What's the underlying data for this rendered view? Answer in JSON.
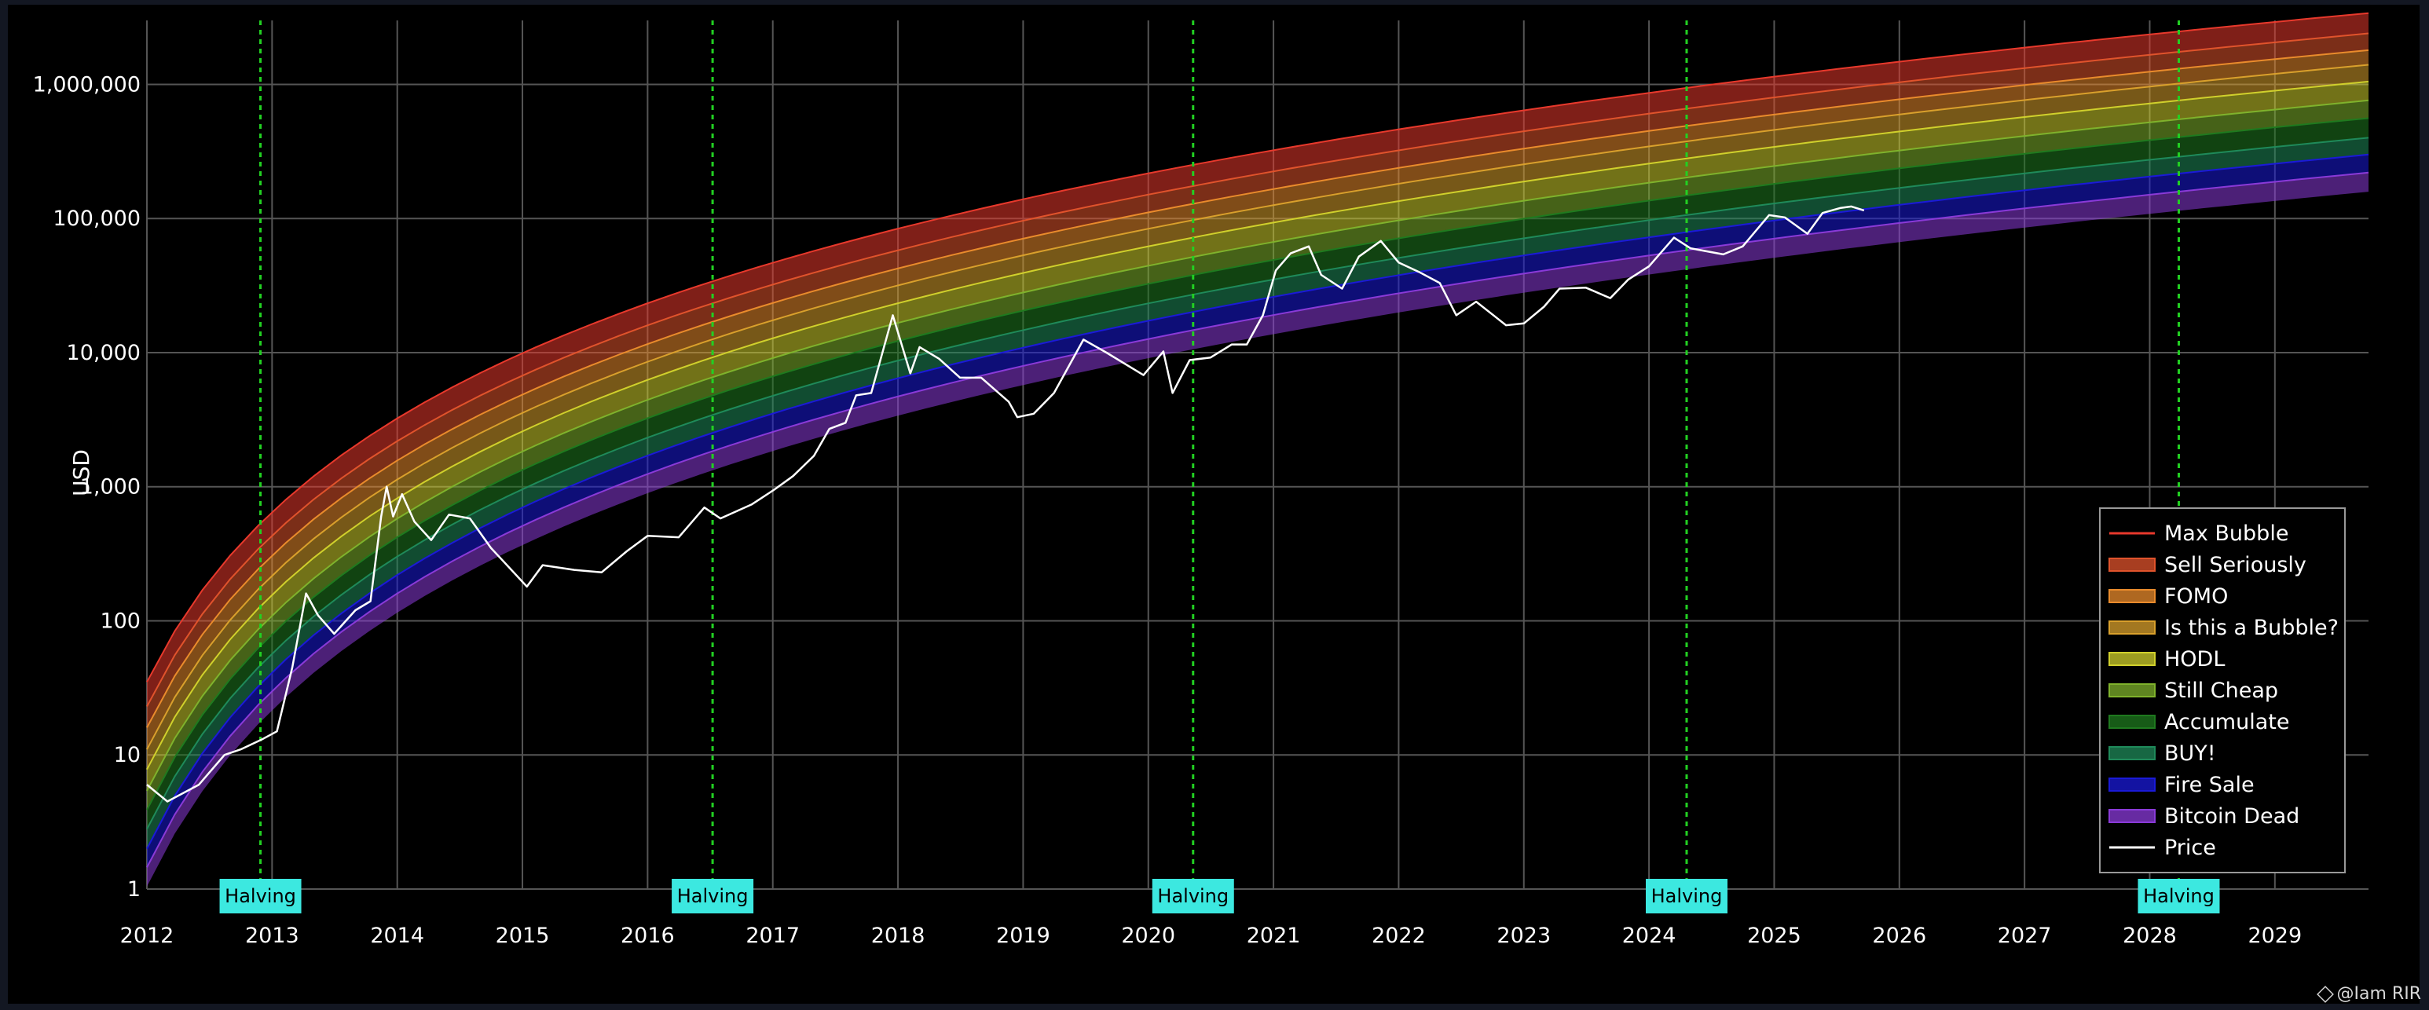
{
  "chart_data": {
    "type": "area",
    "title": "",
    "xlabel": "",
    "ylabel": "USD",
    "yscale": "log",
    "xlim": [
      "2012-01-01",
      "2029-10-01"
    ],
    "ylim": [
      1,
      3000000
    ],
    "x_ticks": [
      "2012",
      "2013",
      "2014",
      "2015",
      "2016",
      "2017",
      "2018",
      "2019",
      "2020",
      "2021",
      "2022",
      "2023",
      "2024",
      "2025",
      "2026",
      "2027",
      "2028",
      "2029"
    ],
    "y_ticks": [
      1,
      10,
      100,
      1000,
      10000,
      100000,
      1000000
    ],
    "y_tick_labels": [
      "1",
      "10",
      "100",
      "1,000",
      "10,000",
      "100,000",
      "1,000,000"
    ],
    "grid": true,
    "legend_position": "bottom-right",
    "rainbow_bands": [
      {
        "name": "Max Bubble",
        "color": "#e8392c",
        "values_2012": 35,
        "values_2029_75": 3400000
      },
      {
        "name": "Sell Seriously",
        "color": "#e0532c",
        "values_2012": 23,
        "values_2029_75": 2400000
      },
      {
        "name": "FOMO",
        "color": "#e98b2c",
        "values_2012": 16,
        "values_2029_75": 1800000
      },
      {
        "name": "Is this a Bubble?",
        "color": "#d9a02c",
        "values_2012": 11,
        "values_2029_75": 1400000
      },
      {
        "name": "HODL",
        "color": "#d0d02c",
        "values_2012": 7.8,
        "values_2029_75": 1050000
      },
      {
        "name": "Still Cheap",
        "color": "#7fb22c",
        "values_2012": 5.4,
        "values_2029_75": 760000
      },
      {
        "name": "Accumulate",
        "color": "#1f7a1f",
        "values_2012": 3.9,
        "values_2029_75": 560000
      },
      {
        "name": "BUY!",
        "color": "#1f8a5a",
        "values_2012": 2.8,
        "values_2029_75": 400000
      },
      {
        "name": "Fire Sale",
        "color": "#1a1ad8",
        "values_2012": 2.0,
        "values_2029_75": 300000
      },
      {
        "name": "Bitcoin Dead",
        "color": "#8a3ad8",
        "values_2012": 1.45,
        "values_2029_75": 220000
      }
    ],
    "series": [
      {
        "name": "Price",
        "color": "#ffffff",
        "x": [
          "2012-01-01",
          "2012-03-01",
          "2012-06-01",
          "2012-08-15",
          "2012-10-01",
          "2012-12-01",
          "2013-01-15",
          "2013-03-01",
          "2013-04-10",
          "2013-05-15",
          "2013-07-01",
          "2013-09-01",
          "2013-10-15",
          "2013-11-15",
          "2013-12-01",
          "2013-12-20",
          "2014-01-15",
          "2014-02-20",
          "2014-04-10",
          "2014-06-01",
          "2014-08-01",
          "2014-10-01",
          "2015-01-14",
          "2015-03-01",
          "2015-06-01",
          "2015-08-20",
          "2015-11-01",
          "2016-01-01",
          "2016-04-01",
          "2016-06-15",
          "2016-08-01",
          "2016-11-01",
          "2017-01-05",
          "2017-03-01",
          "2017-05-01",
          "2017-06-15",
          "2017-08-01",
          "2017-09-01",
          "2017-10-15",
          "2017-12-17",
          "2018-02-06",
          "2018-03-05",
          "2018-05-01",
          "2018-07-01",
          "2018-09-01",
          "2018-11-20",
          "2018-12-15",
          "2019-02-01",
          "2019-04-01",
          "2019-06-26",
          "2019-09-01",
          "2019-12-18",
          "2020-02-14",
          "2020-03-12",
          "2020-05-01",
          "2020-07-01",
          "2020-09-01",
          "2020-10-15",
          "2020-12-01",
          "2021-01-08",
          "2021-02-20",
          "2021-04-14",
          "2021-05-20",
          "2021-07-20",
          "2021-09-07",
          "2021-11-10",
          "2022-01-01",
          "2022-03-01",
          "2022-05-01",
          "2022-06-18",
          "2022-08-15",
          "2022-11-10",
          "2023-01-01",
          "2023-03-01",
          "2023-04-15",
          "2023-07-01",
          "2023-09-10",
          "2023-11-01",
          "2024-01-01",
          "2024-03-14",
          "2024-05-01",
          "2024-08-05",
          "2024-10-01",
          "2024-12-17",
          "2025-02-01",
          "2025-04-08",
          "2025-05-22",
          "2025-07-14",
          "2025-08-14",
          "2025-09-20"
        ],
        "values": [
          6,
          4.5,
          6,
          10,
          11,
          13,
          15,
          45,
          160,
          110,
          80,
          120,
          140,
          600,
          1000,
          600,
          880,
          550,
          400,
          620,
          580,
          350,
          180,
          260,
          240,
          230,
          330,
          430,
          420,
          700,
          580,
          740,
          950,
          1200,
          1700,
          2700,
          3000,
          4800,
          5000,
          19000,
          7000,
          11000,
          9000,
          6500,
          6500,
          4300,
          3300,
          3500,
          5000,
          12500,
          10000,
          6800,
          10200,
          5000,
          8800,
          9200,
          11500,
          11500,
          19000,
          41000,
          55000,
          62000,
          38000,
          30000,
          52000,
          68000,
          47000,
          40000,
          33000,
          19000,
          24000,
          16000,
          16500,
          22000,
          30000,
          30500,
          25500,
          35000,
          44000,
          72000,
          60000,
          54000,
          62000,
          106000,
          102000,
          77000,
          110000,
          120000,
          123000,
          115000
        ]
      }
    ],
    "legend": [
      "Max Bubble",
      "Sell Seriously",
      "FOMO",
      "Is this a Bubble?",
      "HODL",
      "Still Cheap",
      "Accumulate",
      "BUY!",
      "Fire Sale",
      "Bitcoin Dead",
      "Price"
    ],
    "halvings": [
      {
        "date": "2012-11-28",
        "label": "Halving"
      },
      {
        "date": "2016-07-09",
        "label": "Halving"
      },
      {
        "date": "2020-05-11",
        "label": "Halving"
      },
      {
        "date": "2024-04-20",
        "label": "Halving"
      },
      {
        "date": "2028-03-26",
        "label": "Halving"
      }
    ],
    "halving_line_color": "#22d022",
    "halving_label_bg": "#3ce8e0"
  },
  "watermark": "@Iam RIR",
  "watermark_icon": "diamond-logo-icon"
}
